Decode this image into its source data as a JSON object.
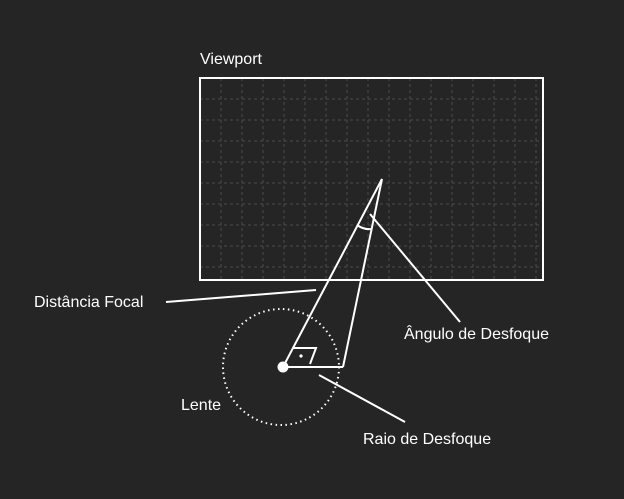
{
  "diagram": {
    "labels": {
      "viewport": "Viewport",
      "focal_distance": "Distância Focal",
      "blur_angle": "Ângulo de Desfoque",
      "lens": "Lente",
      "blur_radius": "Raio de Desfoque"
    },
    "colors": {
      "background": "#252526",
      "stroke": "#ffffff",
      "grid": "#4a4a4a"
    }
  }
}
